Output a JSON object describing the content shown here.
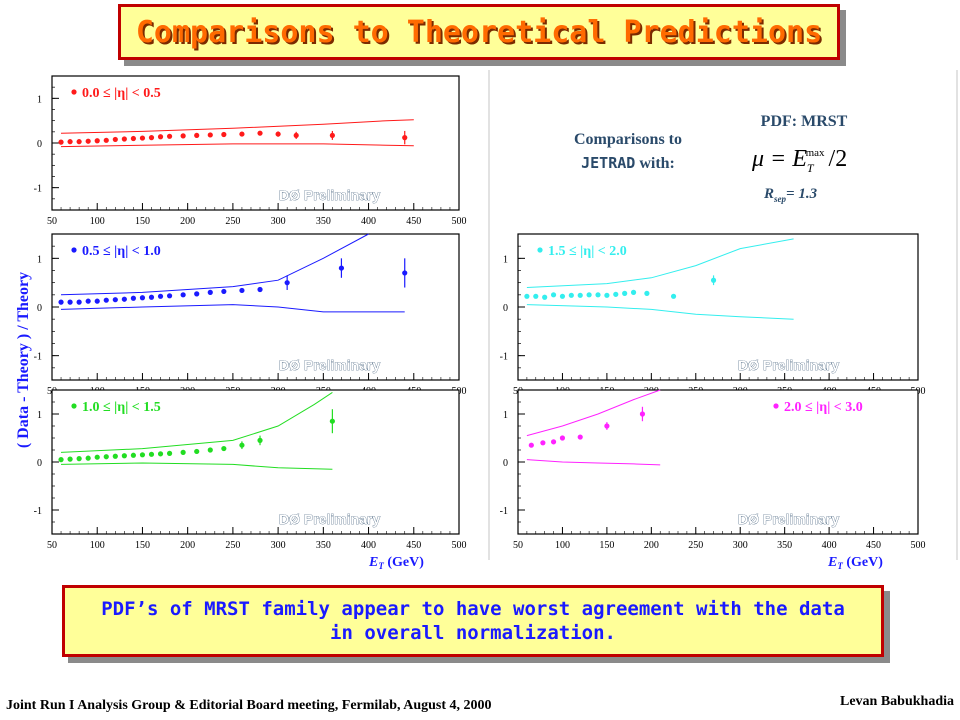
{
  "slide": {
    "title": "Comparisons to Theoretical Predictions",
    "summary": "PDF’s of MRST family appear to have worst agreement with the data in overall normalization.",
    "footer_left": "Joint Run I Analysis Group & Editorial Board meeting, Fermilab, August 4, 2000",
    "footer_right": "Levan Babukhadia"
  },
  "info": {
    "comparisons_line1": "Comparisons to",
    "comparisons_code": "JETRAD",
    "comparisons_with": " with:",
    "pdf": "PDF: MRST",
    "mu_formula": "μ = E",
    "mu_sub": "T",
    "mu_sup": "max",
    "mu_div": "/2",
    "rsep_R": "R",
    "rsep_sub": "sep",
    "rsep_val": "= 1.3"
  },
  "colors": {
    "red": "#ff1a1a",
    "blue": "#1a1aff",
    "green": "#22dd22",
    "cyan": "#33eeee",
    "magenta": "#ff22ff",
    "title_text": "#ff6a00",
    "title_border": "#c00000",
    "box_fill": "#ffff99",
    "label_blue": "#1a1aff",
    "label_dark": "#2a4a6a"
  },
  "chart_data": {
    "type": "scatter",
    "ylabel": "( Data - Theory ) / Theory",
    "xlabel": "E",
    "xlabel_sub": "T",
    "xlabel_unit": " (GeV)",
    "watermark": "DØ Preliminary",
    "panels": [
      {
        "name": "0.0 ≤ |η| < 0.5",
        "color": "red",
        "xlim": [
          50,
          500
        ],
        "x_ticks": [
          50,
          100,
          150,
          200,
          250,
          300,
          350,
          400,
          450,
          500
        ],
        "ylim": [
          -1.5,
          1.5
        ],
        "y_ticks": [
          1,
          0,
          -1
        ],
        "show_xlabel": false,
        "label_pos": "left",
        "points": [
          {
            "x": 60,
            "y": 0.02
          },
          {
            "x": 70,
            "y": 0.03
          },
          {
            "x": 80,
            "y": 0.03
          },
          {
            "x": 90,
            "y": 0.04
          },
          {
            "x": 100,
            "y": 0.05
          },
          {
            "x": 110,
            "y": 0.06
          },
          {
            "x": 120,
            "y": 0.08
          },
          {
            "x": 130,
            "y": 0.09
          },
          {
            "x": 140,
            "y": 0.1
          },
          {
            "x": 150,
            "y": 0.11
          },
          {
            "x": 160,
            "y": 0.12
          },
          {
            "x": 170,
            "y": 0.14
          },
          {
            "x": 180,
            "y": 0.15
          },
          {
            "x": 195,
            "y": 0.16
          },
          {
            "x": 210,
            "y": 0.17
          },
          {
            "x": 225,
            "y": 0.18
          },
          {
            "x": 240,
            "y": 0.19
          },
          {
            "x": 260,
            "y": 0.2,
            "err": 0.05
          },
          {
            "x": 280,
            "y": 0.22,
            "err": 0.05
          },
          {
            "x": 300,
            "y": 0.2,
            "err": 0.06
          },
          {
            "x": 320,
            "y": 0.17,
            "err": 0.08
          },
          {
            "x": 360,
            "y": 0.17,
            "err": 0.1
          },
          {
            "x": 440,
            "y": 0.12,
            "err": 0.15
          }
        ],
        "band_upper": [
          {
            "x": 60,
            "y": 0.22
          },
          {
            "x": 150,
            "y": 0.26
          },
          {
            "x": 250,
            "y": 0.33
          },
          {
            "x": 350,
            "y": 0.42
          },
          {
            "x": 420,
            "y": 0.5
          },
          {
            "x": 450,
            "y": 0.52
          }
        ],
        "band_lower": [
          {
            "x": 60,
            "y": -0.08
          },
          {
            "x": 150,
            "y": -0.05
          },
          {
            "x": 250,
            "y": -0.02
          },
          {
            "x": 350,
            "y": -0.02
          },
          {
            "x": 420,
            "y": -0.05
          },
          {
            "x": 450,
            "y": -0.06
          }
        ]
      },
      {
        "name": "0.5 ≤ |η| < 1.0",
        "color": "blue",
        "xlim": [
          50,
          500
        ],
        "x_ticks": [
          50,
          100,
          150,
          200,
          250,
          300,
          350,
          400,
          450,
          500
        ],
        "ylim": [
          -1.5,
          1.5
        ],
        "y_ticks": [
          1,
          0,
          -1
        ],
        "show_xlabel": false,
        "label_pos": "left",
        "points": [
          {
            "x": 60,
            "y": 0.1
          },
          {
            "x": 70,
            "y": 0.1
          },
          {
            "x": 80,
            "y": 0.1
          },
          {
            "x": 90,
            "y": 0.12
          },
          {
            "x": 100,
            "y": 0.12
          },
          {
            "x": 110,
            "y": 0.14
          },
          {
            "x": 120,
            "y": 0.15
          },
          {
            "x": 130,
            "y": 0.16
          },
          {
            "x": 140,
            "y": 0.18
          },
          {
            "x": 150,
            "y": 0.19
          },
          {
            "x": 160,
            "y": 0.2
          },
          {
            "x": 170,
            "y": 0.22
          },
          {
            "x": 180,
            "y": 0.23
          },
          {
            "x": 195,
            "y": 0.25
          },
          {
            "x": 210,
            "y": 0.27
          },
          {
            "x": 225,
            "y": 0.3
          },
          {
            "x": 240,
            "y": 0.32
          },
          {
            "x": 260,
            "y": 0.34
          },
          {
            "x": 280,
            "y": 0.36
          },
          {
            "x": 310,
            "y": 0.5,
            "err": 0.15
          },
          {
            "x": 370,
            "y": 0.8,
            "err": 0.2
          },
          {
            "x": 440,
            "y": 0.7,
            "err": 0.3
          }
        ],
        "band_upper": [
          {
            "x": 60,
            "y": 0.25
          },
          {
            "x": 150,
            "y": 0.3
          },
          {
            "x": 250,
            "y": 0.42
          },
          {
            "x": 300,
            "y": 0.55
          },
          {
            "x": 350,
            "y": 1.0
          },
          {
            "x": 400,
            "y": 1.5
          }
        ],
        "band_lower": [
          {
            "x": 60,
            "y": -0.05
          },
          {
            "x": 150,
            "y": 0.0
          },
          {
            "x": 250,
            "y": 0.05
          },
          {
            "x": 300,
            "y": 0.0
          },
          {
            "x": 350,
            "y": -0.1
          },
          {
            "x": 440,
            "y": -0.1
          }
        ]
      },
      {
        "name": "1.0 ≤ |η| < 1.5",
        "color": "green",
        "xlim": [
          50,
          500
        ],
        "x_ticks": [
          50,
          100,
          150,
          200,
          250,
          300,
          350,
          400,
          450,
          500
        ],
        "ylim": [
          -1.5,
          1.5
        ],
        "y_ticks": [
          1,
          0,
          -1
        ],
        "show_xlabel": true,
        "label_pos": "left",
        "points": [
          {
            "x": 60,
            "y": 0.05
          },
          {
            "x": 70,
            "y": 0.06
          },
          {
            "x": 80,
            "y": 0.07
          },
          {
            "x": 90,
            "y": 0.08
          },
          {
            "x": 100,
            "y": 0.1
          },
          {
            "x": 110,
            "y": 0.11
          },
          {
            "x": 120,
            "y": 0.12
          },
          {
            "x": 130,
            "y": 0.13
          },
          {
            "x": 140,
            "y": 0.14
          },
          {
            "x": 150,
            "y": 0.15
          },
          {
            "x": 160,
            "y": 0.16
          },
          {
            "x": 170,
            "y": 0.17
          },
          {
            "x": 180,
            "y": 0.18
          },
          {
            "x": 195,
            "y": 0.2
          },
          {
            "x": 210,
            "y": 0.22
          },
          {
            "x": 225,
            "y": 0.25
          },
          {
            "x": 240,
            "y": 0.28
          },
          {
            "x": 260,
            "y": 0.35,
            "err": 0.08
          },
          {
            "x": 280,
            "y": 0.45,
            "err": 0.1
          },
          {
            "x": 360,
            "y": 0.85,
            "err": 0.25
          }
        ],
        "band_upper": [
          {
            "x": 60,
            "y": 0.2
          },
          {
            "x": 150,
            "y": 0.28
          },
          {
            "x": 250,
            "y": 0.45
          },
          {
            "x": 300,
            "y": 0.75
          },
          {
            "x": 340,
            "y": 1.2
          },
          {
            "x": 360,
            "y": 1.45
          }
        ],
        "band_lower": [
          {
            "x": 60,
            "y": -0.05
          },
          {
            "x": 150,
            "y": -0.02
          },
          {
            "x": 250,
            "y": -0.05
          },
          {
            "x": 300,
            "y": -0.12
          },
          {
            "x": 360,
            "y": -0.15
          }
        ]
      },
      {
        "name": "1.5 ≤ |η| < 2.0",
        "color": "cyan",
        "xlim": [
          50,
          500
        ],
        "x_ticks": [
          50,
          100,
          150,
          200,
          250,
          300,
          350,
          400,
          450,
          500
        ],
        "ylim": [
          -1.5,
          1.5
        ],
        "y_ticks": [
          1,
          0,
          -1
        ],
        "show_xlabel": false,
        "label_pos": "left",
        "points": [
          {
            "x": 60,
            "y": 0.22
          },
          {
            "x": 70,
            "y": 0.22
          },
          {
            "x": 80,
            "y": 0.2
          },
          {
            "x": 90,
            "y": 0.25
          },
          {
            "x": 100,
            "y": 0.22
          },
          {
            "x": 110,
            "y": 0.24
          },
          {
            "x": 120,
            "y": 0.24
          },
          {
            "x": 130,
            "y": 0.25
          },
          {
            "x": 140,
            "y": 0.25
          },
          {
            "x": 150,
            "y": 0.24
          },
          {
            "x": 160,
            "y": 0.26
          },
          {
            "x": 170,
            "y": 0.28
          },
          {
            "x": 180,
            "y": 0.3
          },
          {
            "x": 195,
            "y": 0.28
          },
          {
            "x": 225,
            "y": 0.22
          },
          {
            "x": 270,
            "y": 0.55,
            "err": 0.1
          }
        ],
        "band_upper": [
          {
            "x": 60,
            "y": 0.4
          },
          {
            "x": 150,
            "y": 0.48
          },
          {
            "x": 200,
            "y": 0.6
          },
          {
            "x": 250,
            "y": 0.85
          },
          {
            "x": 300,
            "y": 1.2
          },
          {
            "x": 360,
            "y": 1.4
          }
        ],
        "band_lower": [
          {
            "x": 60,
            "y": 0.05
          },
          {
            "x": 150,
            "y": 0.0
          },
          {
            "x": 200,
            "y": -0.05
          },
          {
            "x": 250,
            "y": -0.15
          },
          {
            "x": 300,
            "y": -0.2
          },
          {
            "x": 360,
            "y": -0.25
          }
        ]
      },
      {
        "name": "2.0 ≤ |η| < 3.0",
        "color": "magenta",
        "xlim": [
          50,
          500
        ],
        "x_ticks": [
          50,
          100,
          150,
          200,
          250,
          300,
          350,
          400,
          450,
          500
        ],
        "ylim": [
          -1.5,
          1.5
        ],
        "y_ticks": [
          1,
          0,
          -1
        ],
        "show_xlabel": true,
        "label_pos": "right",
        "points": [
          {
            "x": 65,
            "y": 0.35
          },
          {
            "x": 78,
            "y": 0.4
          },
          {
            "x": 90,
            "y": 0.42
          },
          {
            "x": 100,
            "y": 0.5
          },
          {
            "x": 120,
            "y": 0.52
          },
          {
            "x": 150,
            "y": 0.75,
            "err": 0.08
          },
          {
            "x": 190,
            "y": 1.0,
            "err": 0.15
          }
        ],
        "band_upper": [
          {
            "x": 60,
            "y": 0.55
          },
          {
            "x": 100,
            "y": 0.75
          },
          {
            "x": 140,
            "y": 1.0
          },
          {
            "x": 180,
            "y": 1.3
          },
          {
            "x": 210,
            "y": 1.55
          }
        ],
        "band_lower": [
          {
            "x": 60,
            "y": 0.05
          },
          {
            "x": 100,
            "y": 0.0
          },
          {
            "x": 140,
            "y": -0.02
          },
          {
            "x": 180,
            "y": -0.04
          },
          {
            "x": 210,
            "y": -0.06
          }
        ]
      }
    ]
  }
}
